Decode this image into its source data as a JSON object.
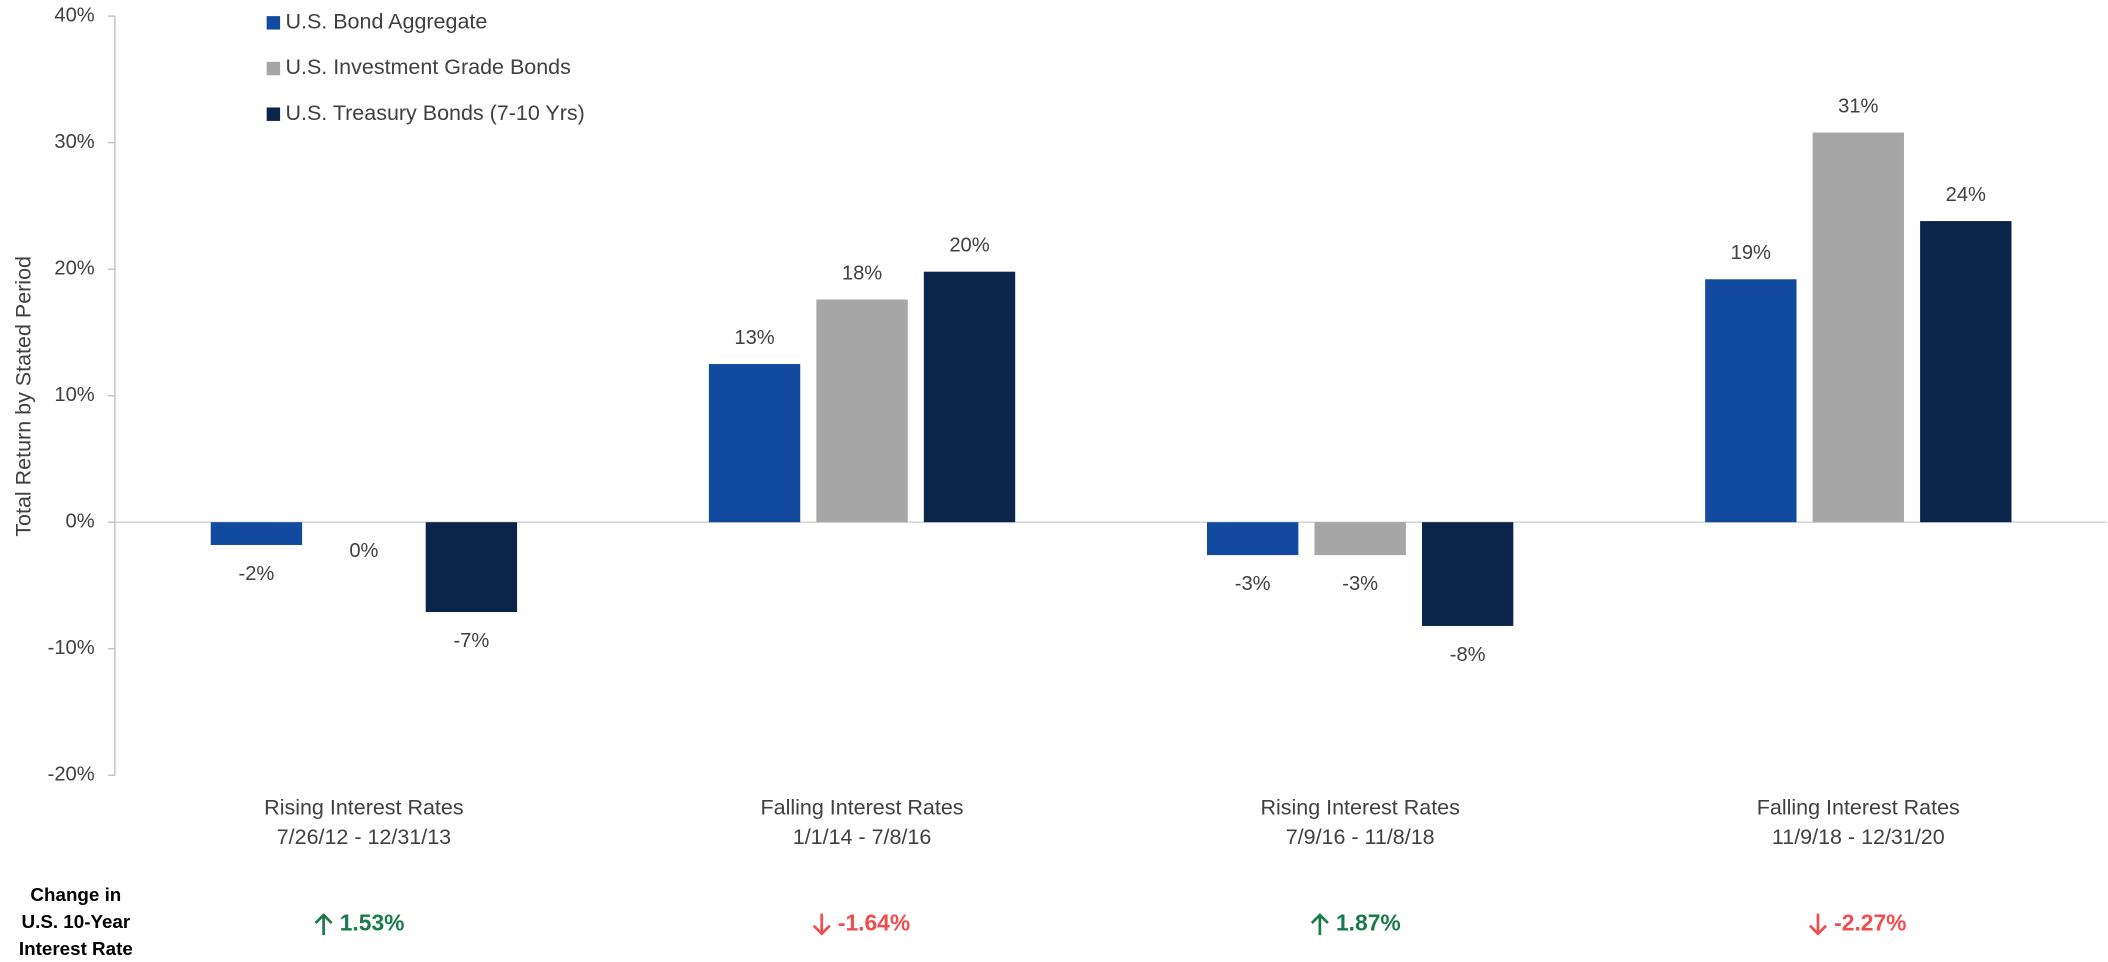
{
  "chart_data": {
    "type": "bar",
    "y_label": "Total Return by Stated Period",
    "categories": [
      "Rising Interest Rates",
      "Falling Interest Rates",
      "Rising Interest Rates",
      "Falling Interest Rates"
    ],
    "periods": [
      "7/26/12 - 12/31/13",
      "1/1/14 - 7/8/16",
      "7/9/16 - 11/8/18",
      "11/9/18 - 12/31/20"
    ],
    "series": [
      {
        "name": "U.S. Bond Aggregate",
        "color": "#114a9f",
        "values": [
          -1.8,
          12.5,
          -2.6,
          19.2
        ],
        "value_labels": [
          "-2%",
          "13%",
          "-3%",
          "19%"
        ]
      },
      {
        "name": "U.S. Investment Grade Bonds",
        "color": "#a6a6a6",
        "values": [
          0,
          17.6,
          -2.6,
          30.8
        ],
        "value_labels": [
          "0%",
          "18%",
          "-3%",
          "31%"
        ]
      },
      {
        "name": "U.S. Treasury Bonds (7-10 Yrs)",
        "color": "#0b2449",
        "values": [
          -7.1,
          19.8,
          -8.2,
          23.8
        ],
        "value_labels": [
          "-7%",
          "20%",
          "-8%",
          "24%"
        ]
      }
    ],
    "ylim": [
      -20,
      40
    ],
    "yticks": [
      {
        "value": -20,
        "label": "-20%"
      },
      {
        "value": -10,
        "label": "-10%"
      },
      {
        "value": 0,
        "label": "0%"
      },
      {
        "value": 10,
        "label": "10%"
      },
      {
        "value": 20,
        "label": "20%"
      },
      {
        "value": 30,
        "label": "30%"
      },
      {
        "value": 40,
        "label": "40%"
      }
    ],
    "rate_change": {
      "label": [
        "Change in",
        "U.S. 10-Year",
        "Interest Rate"
      ],
      "values": [
        1.53,
        -1.64,
        1.87,
        -2.27
      ],
      "value_labels": [
        "1.53%",
        "-1.64%",
        "1.87%",
        "-2.27%"
      ],
      "up_color": "#1a7a4c",
      "down_color": "#f04e4e"
    }
  }
}
